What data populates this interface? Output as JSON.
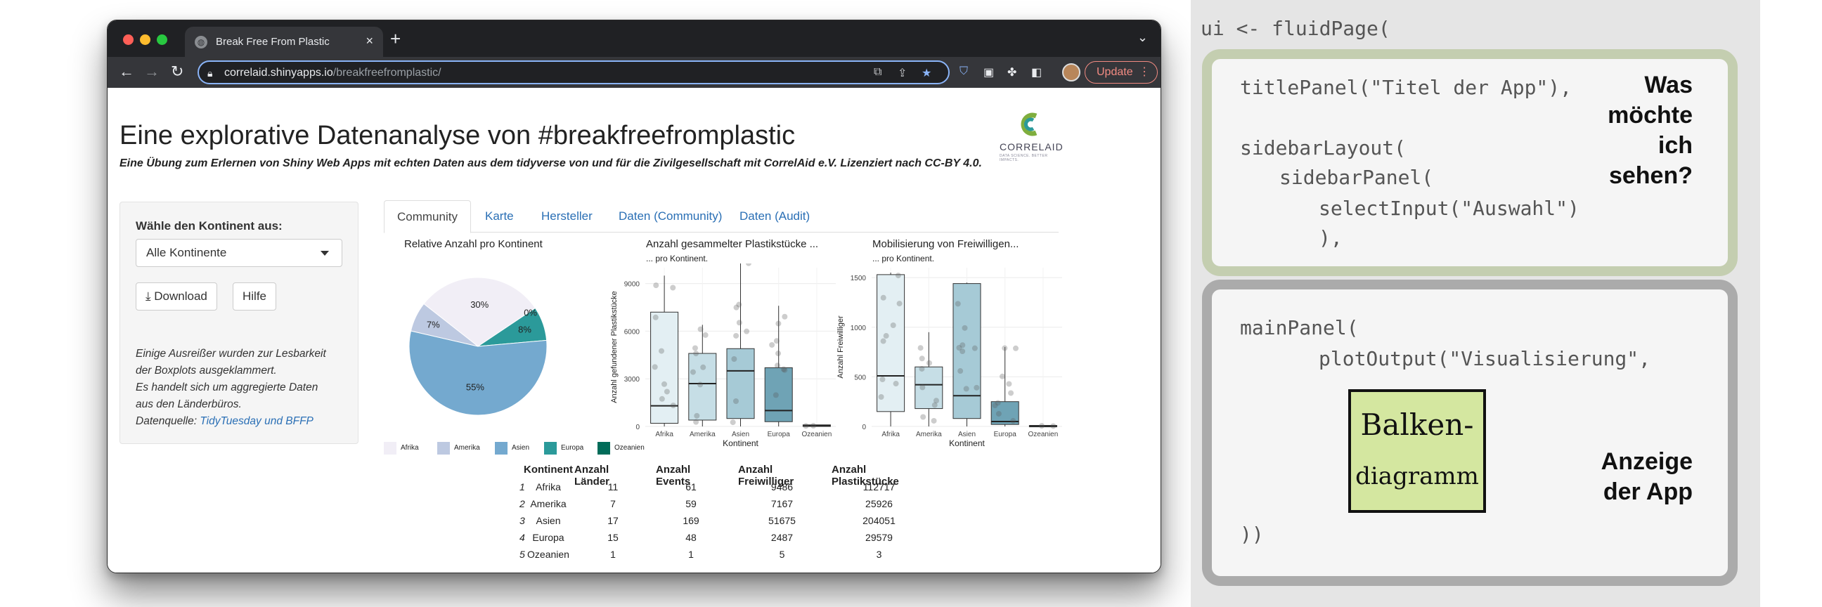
{
  "browser": {
    "tab_title": "Break Free From Plastic",
    "tab_close": "×",
    "new_tab": "+",
    "url_host": "correlaid.shinyapps.io",
    "url_path": "/breakfreefromplastic/",
    "update_label": "Update"
  },
  "app": {
    "title": "Eine explorative Datenanalyse von #breakfreefromplastic",
    "subtitle": "Eine Übung zum Erlernen von Shiny Web Apps mit echten Daten aus dem tidyverse von und für die Zivilgesellschaft mit CorrelAid e.V. Lizenziert nach CC-BY 4.0.",
    "logo_text": "CORRELAID",
    "logo_tag": "DATA SCIENCE. BETTER IMPACTS."
  },
  "sidebar": {
    "label": "Wähle den Kontinent aus:",
    "select_value": "Alle Kontinente",
    "download_label": "Download",
    "help_label": "Hilfe",
    "note_lines": [
      "Einige Ausreißer wurden zur Lesbarkeit",
      "der Boxplots ausgeklammert.",
      "Es handelt sich um aggregierte Daten",
      "aus den Länderbüros."
    ],
    "source_prefix": "Datenquelle: ",
    "source_link": "TidyTuesday und BFFP"
  },
  "tabs": [
    "Community",
    "Karte",
    "Hersteller",
    "Daten (Community)",
    "Daten (Audit)"
  ],
  "colors": {
    "Afrika": "#f1eef6",
    "Amerika": "#bdc9e1",
    "Asien": "#74a9cf",
    "Europa": "#2b9a9a",
    "Ozeanien": "#016c59",
    "box_fill": "#a6cad6"
  },
  "chart_data": [
    {
      "type": "pie",
      "title": "Relative Anzahl pro Kontinent",
      "categories": [
        "Afrika",
        "Amerika",
        "Asien",
        "Europa",
        "Ozeanien"
      ],
      "values": [
        30,
        7,
        55,
        8,
        0
      ],
      "labels": [
        "30%",
        "7%",
        "55%",
        "8%",
        "0%"
      ],
      "legend_placement": "bottom"
    },
    {
      "type": "box",
      "title": "Anzahl gesammelter Plastikstücke ...",
      "subtitle": "... pro Kontinent.",
      "xlabel": "Kontinent",
      "ylabel": "Anzahl gefundener Plastikstücke",
      "ylim": [
        0,
        10000
      ],
      "yticks": [
        0,
        3000,
        6000,
        9000
      ],
      "categories": [
        "Afrika",
        "Amerika",
        "Asien",
        "Europa",
        "Ozeanien"
      ],
      "boxes": [
        {
          "q1": 200,
          "median": 1300,
          "q3": 7200,
          "min": 0,
          "max": 9500
        },
        {
          "q1": 400,
          "median": 2700,
          "q3": 4600,
          "min": 0,
          "max": 6400
        },
        {
          "q1": 500,
          "median": 3500,
          "q3": 4900,
          "min": 0,
          "max": 10500
        },
        {
          "q1": 300,
          "median": 1000,
          "q3": 3700,
          "min": 0,
          "max": 7600
        },
        {
          "q1": 0,
          "median": 50,
          "q3": 100,
          "min": 0,
          "max": 100
        }
      ]
    },
    {
      "type": "box",
      "title": "Mobilisierung von Freiwilligen...",
      "subtitle": "... pro Kontinent.",
      "xlabel": "Kontinent",
      "ylabel": "Anzahl Freiwilliger",
      "ylim": [
        0,
        1600
      ],
      "yticks": [
        0,
        500,
        1000,
        1500
      ],
      "categories": [
        "Afrika",
        "Amerika",
        "Asien",
        "Europa",
        "Ozeanien"
      ],
      "boxes": [
        {
          "q1": 150,
          "median": 510,
          "q3": 1530,
          "min": 0,
          "max": 1550
        },
        {
          "q1": 180,
          "median": 420,
          "q3": 600,
          "min": 0,
          "max": 950
        },
        {
          "q1": 80,
          "median": 310,
          "q3": 1440,
          "min": 0,
          "max": 1450
        },
        {
          "q1": 20,
          "median": 50,
          "q3": 250,
          "min": 0,
          "max": 800
        },
        {
          "q1": 0,
          "median": 5,
          "q3": 10,
          "min": 0,
          "max": 10
        }
      ]
    },
    {
      "type": "table",
      "columns": [
        "Kontinent",
        "Anzahl Länder",
        "Anzahl Events",
        "Anzahl Freiwilliger",
        "Anzahl Plastikstücke"
      ],
      "rows": [
        [
          "1",
          "Afrika",
          "11",
          "61",
          "9486",
          "112717"
        ],
        [
          "2",
          "Amerika",
          "7",
          "59",
          "7167",
          "25926"
        ],
        [
          "3",
          "Asien",
          "17",
          "169",
          "51675",
          "204051"
        ],
        [
          "4",
          "Europa",
          "15",
          "48",
          "2487",
          "29579"
        ],
        [
          "5",
          "Ozeanien",
          "1",
          "1",
          "5",
          "3"
        ]
      ]
    }
  ],
  "code_panel": {
    "line_fluidpage": "ui <- fluidPage(",
    "line_titlepanel": "titlePanel(\"Titel der App\"),",
    "line_sidebarlayout": "sidebarLayout(",
    "line_sidebarpanel": "sidebarPanel(",
    "line_selectinput": "selectInput(\"Auswahl\")",
    "line_close1": "),",
    "line_mainpanel": "mainPanel(",
    "line_plotoutput": "plotOutput(\"Visualisierung\",",
    "line_close_all": "))",
    "question_lines": [
      "Was",
      "möchte",
      "ich",
      "sehen?"
    ],
    "display_lines": [
      "Anzeige",
      "der App"
    ],
    "sketch_line1": "Balken-",
    "sketch_line2": "diagramm"
  }
}
